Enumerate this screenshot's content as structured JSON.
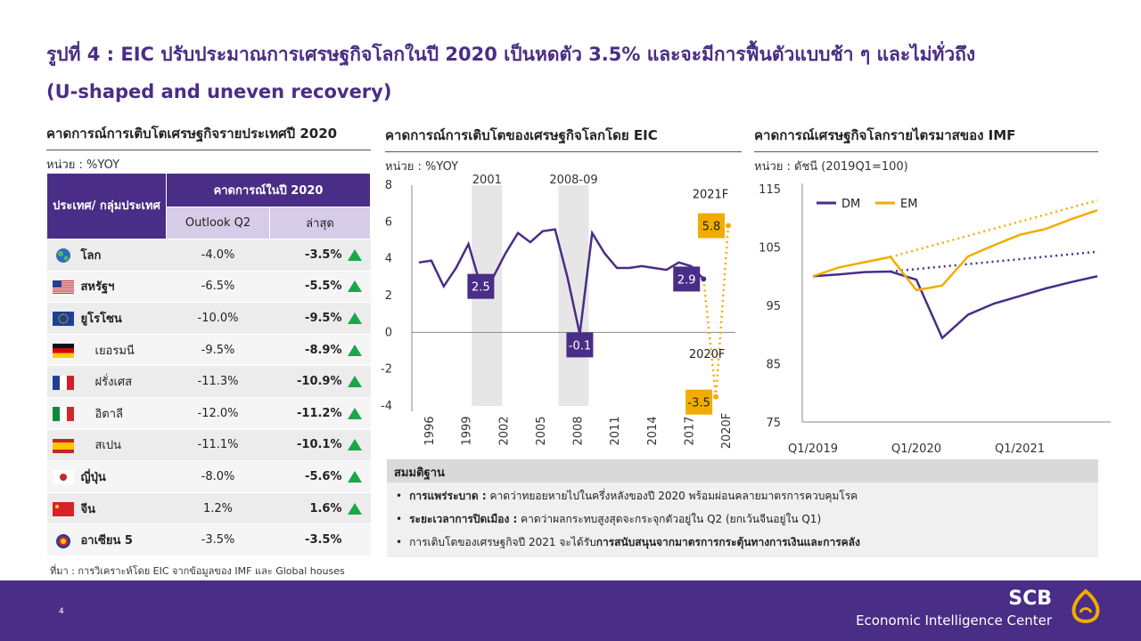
{
  "title_line1": "รูปที่ 4 : EIC ปรับประมาณการเศรษฐกิจโลกในปี 2020 เป็นหดตัว 3.5% และจะมีการฟื้นตัวแบบช้า ๆ และไม่ทั่วถึง",
  "title_line2": "(U-shaped and uneven recovery)",
  "table_section": {
    "heading": "คาดการณ์การเติบโตเศรษฐกิจรายประเทศปี 2020",
    "unit": "หน่วย : %YOY",
    "col_country": "ประเทศ/ กลุ่มประเทศ",
    "col_forecast": "คาดการณ์ในปี 2020",
    "col_outlook": "Outlook Q2",
    "col_latest": "ล่าสุด",
    "rows": [
      {
        "name": "โลก",
        "outlook": "-4.0%",
        "latest": "-3.5%",
        "up": true,
        "bold": true,
        "indent": false,
        "flag": "globe"
      },
      {
        "name": "สหรัฐฯ",
        "outlook": "-6.5%",
        "latest": "-5.5%",
        "up": true,
        "bold": true,
        "indent": false,
        "flag": "us"
      },
      {
        "name": "ยูโรโซน",
        "outlook": "-10.0%",
        "latest": "-9.5%",
        "up": true,
        "bold": true,
        "indent": false,
        "flag": "eu"
      },
      {
        "name": "เยอรมนี",
        "outlook": "-9.5%",
        "latest": "-8.9%",
        "up": true,
        "bold": false,
        "indent": true,
        "flag": "de"
      },
      {
        "name": "ฝรั่งเศส",
        "outlook": "-11.3%",
        "latest": "-10.9%",
        "up": true,
        "bold": false,
        "indent": true,
        "flag": "fr"
      },
      {
        "name": "อิตาลี",
        "outlook": "-12.0%",
        "latest": "-11.2%",
        "up": true,
        "bold": false,
        "indent": true,
        "flag": "it"
      },
      {
        "name": "สเปน",
        "outlook": "-11.1%",
        "latest": "-10.1%",
        "up": true,
        "bold": false,
        "indent": true,
        "flag": "es"
      },
      {
        "name": "ญี่ปุ่น",
        "outlook": "-8.0%",
        "latest": "-5.6%",
        "up": true,
        "bold": true,
        "indent": false,
        "flag": "jp"
      },
      {
        "name": "จีน",
        "outlook": "1.2%",
        "latest": "1.6%",
        "up": true,
        "bold": true,
        "indent": false,
        "flag": "cn"
      },
      {
        "name": "อาเซียน 5",
        "outlook": "-3.5%",
        "latest": "-3.5%",
        "up": false,
        "bold": true,
        "indent": false,
        "flag": "asean"
      }
    ]
  },
  "chart2_section": {
    "heading": "คาดการณ์การเติบโตของเศรษฐกิจโลกโดย EIC",
    "unit": "หน่วย : %YOY"
  },
  "chart3_section": {
    "heading": "คาดการณ์เศรษฐกิจโลกรายไตรมาสของ IMF",
    "unit": "หน่วย : ดัชนี (2019Q1=100)"
  },
  "chart_data": [
    {
      "type": "line",
      "x": [
        "1996",
        "1997",
        "1998",
        "1999",
        "2000",
        "2001",
        "2002",
        "2003",
        "2004",
        "2005",
        "2006",
        "2007",
        "2008",
        "2009",
        "2010",
        "2011",
        "2012",
        "2013",
        "2014",
        "2015",
        "2016",
        "2017",
        "2018",
        "2019"
      ],
      "x_tick_labels": [
        "1996",
        "1999",
        "2002",
        "2005",
        "2008",
        "2011",
        "2014",
        "2017",
        "2020F"
      ],
      "series": [
        {
          "values": [
            3.8,
            3.9,
            2.5,
            3.5,
            4.8,
            2.5,
            3.0,
            4.3,
            5.4,
            4.9,
            5.5,
            5.6,
            3.0,
            -0.1,
            5.4,
            4.3,
            3.5,
            3.5,
            3.6,
            3.5,
            3.4,
            3.8,
            3.6,
            2.9
          ]
        }
      ],
      "forecast": {
        "x": [
          "2019",
          "2020F",
          "2021F"
        ],
        "values": [
          2.9,
          -3.5,
          5.8
        ],
        "labels": [
          "2020F",
          "2021F"
        ]
      },
      "shaded_periods": [
        {
          "label": "2001",
          "from": "2001",
          "to": "2002"
        },
        {
          "label": "2008-09",
          "from": "2008",
          "to": "2009"
        }
      ],
      "data_labels": [
        {
          "x": "2001",
          "text": "2.5"
        },
        {
          "x": "2009",
          "text": "-0.1"
        },
        {
          "x": "2019",
          "text": "2.9"
        },
        {
          "x": "2020F",
          "text": "-3.5"
        },
        {
          "x": "2021F",
          "text": "5.8"
        }
      ],
      "ylim": [
        -4,
        8
      ],
      "y_ticks": [
        -4,
        -2,
        0,
        2,
        4,
        6,
        8
      ],
      "colors": {
        "line": "#4a2d86",
        "forecast": "#f2ac00",
        "shade": "#e6e6e6"
      }
    },
    {
      "type": "line",
      "x_tick_labels": [
        "Q1/2019",
        "Q1/2020",
        "Q1/2021"
      ],
      "x": [
        "2019Q1",
        "2019Q2",
        "2019Q3",
        "2019Q4",
        "2020Q1",
        "2020Q2",
        "2020Q3",
        "2020Q4",
        "2021Q1",
        "2021Q2",
        "2021Q3",
        "2021Q4"
      ],
      "series": [
        {
          "name": "DM",
          "color": "#4a2d86",
          "values": [
            100,
            100.3,
            100.7,
            100.8,
            99.4,
            89.4,
            93.4,
            95.3,
            96.6,
            97.9,
            99.0,
            100.0
          ]
        },
        {
          "name": "EM",
          "color": "#f2ac00",
          "values": [
            100,
            101.5,
            102.4,
            103.3,
            97.6,
            98.4,
            103.4,
            105.3,
            107.1,
            108.1,
            109.8,
            111.3
          ]
        }
      ],
      "dotted_series": [
        {
          "name": "DM",
          "color": "#4a2d86",
          "from": "2019Q4",
          "values_at_end": 104.2
        },
        {
          "name": "EM",
          "color": "#f2ac00",
          "from": "2019Q4",
          "values_at_end": 113.0
        }
      ],
      "ylim": [
        75,
        115
      ],
      "y_ticks": [
        75,
        85,
        95,
        105,
        115
      ],
      "legend": "top-left"
    }
  ],
  "assumptions": {
    "heading": "สมมติฐาน",
    "items": [
      {
        "bold": "การแพร่ระบาด :",
        "text": " คาดว่าทยอยหายไปในครึ่งหลังของปี 2020 พร้อมผ่อนคลายมาตรการควบคุมโรค"
      },
      {
        "bold": "ระยะเวลาการปิดเมือง :",
        "text": " คาดว่าผลกระทบสูงสุดจะกระจุกตัวอยู่ใน Q2 (ยกเว้นจีนอยู่ใน Q1)"
      },
      {
        "text": "การเติบโตของเศรษฐกิจปี 2021 จะได้รับ",
        "bold_after": "การสนับสนุนจากมาตรการกระตุ้นทางการเงินและการคลัง"
      }
    ]
  },
  "source": "ที่มา : การวิเคราะห์โดย EIC จากข้อมูลของ IMF และ Global houses",
  "footer": {
    "page": "4",
    "brand": "SCB",
    "subbrand": "Economic Intelligence Center"
  }
}
